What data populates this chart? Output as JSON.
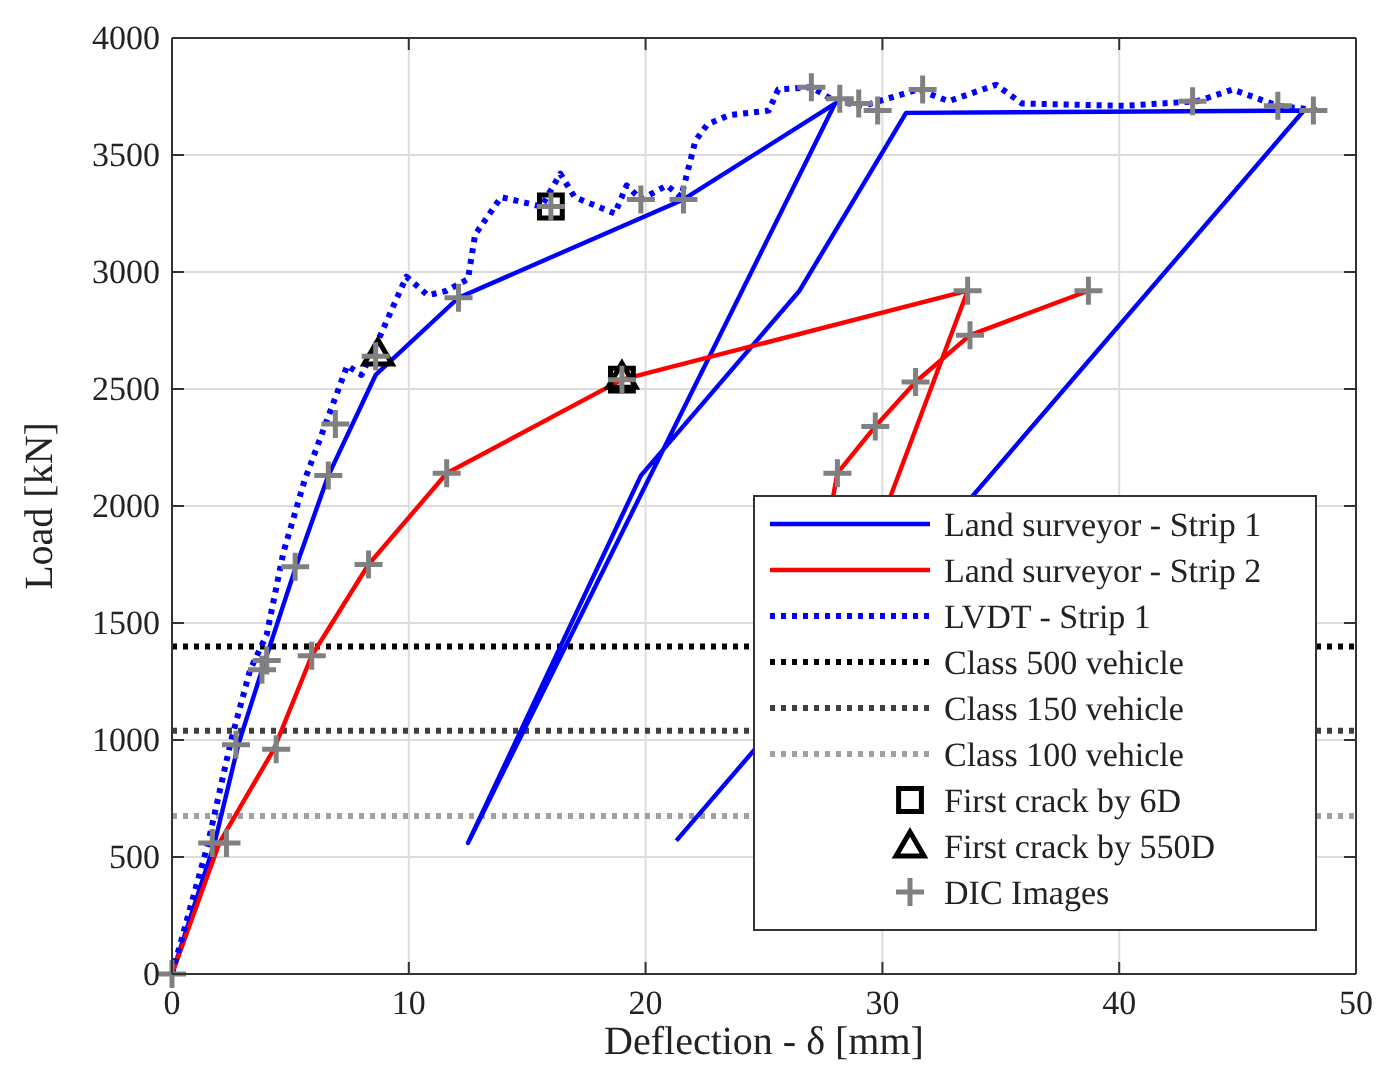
{
  "chart_data": {
    "type": "line",
    "xlabel": "Deflection - δ [mm]",
    "ylabel": "Load [kN]",
    "xlim": [
      0,
      50
    ],
    "xticks": [
      0,
      10,
      20,
      30,
      40,
      50
    ],
    "ylim": [
      0,
      4000
    ],
    "yticks": [
      0,
      500,
      1000,
      1500,
      2000,
      2500,
      3000,
      3500,
      4000
    ],
    "grid": true,
    "legend": "bottom right",
    "series": [
      {
        "name": "Land surveyor - Strip 1",
        "line_style": "solid",
        "color": "#0000ff",
        "x": [
          0,
          1.8,
          2.8,
          3.9,
          5.2,
          6.6,
          8.6,
          12.1,
          21.6,
          28.0,
          12.5,
          19.8,
          26.5,
          31.0,
          47.8,
          21.3
        ],
        "values": [
          0,
          560,
          980,
          1330,
          1730,
          2130,
          2560,
          2890,
          3310,
          3720,
          560,
          2130,
          2920,
          3680,
          3690,
          570
        ]
      },
      {
        "name": "Land surveyor - Strip 2",
        "line_style": "solid",
        "color": "#ff0000",
        "x": [
          0,
          2.0,
          4.3,
          5.9,
          8.3,
          11.6,
          19.0,
          33.6,
          30.3,
          27.9,
          28.1,
          29.7,
          31.4,
          33.7,
          38.7
        ],
        "values": [
          0,
          560,
          960,
          1360,
          1750,
          2140,
          2540,
          2920,
          2030,
          2030,
          2140,
          2340,
          2530,
          2730,
          2920
        ]
      },
      {
        "name": "LVDT - Strip 1",
        "line_style": "dotted",
        "color": "#0000ff",
        "x": [
          0,
          1.5,
          2.5,
          3.3,
          4.0,
          4.7,
          5.6,
          6.3,
          7.4,
          8.0,
          8.8,
          9.9,
          10.8,
          11.6,
          12.5,
          12.8,
          13.9,
          15.6,
          16.4,
          17.0,
          18.7,
          19.2,
          19.8,
          20.9,
          21.5,
          22.1,
          22.6,
          23.5,
          25.2,
          25.6,
          27.0,
          28.0,
          29.2,
          31.5,
          32.8,
          34.8,
          35.9,
          40.2,
          43.3,
          44.8,
          46.7,
          48.5
        ],
        "values": [
          0,
          550,
          1000,
          1300,
          1450,
          1800,
          2110,
          2300,
          2600,
          2560,
          2730,
          2980,
          2900,
          2920,
          2970,
          3160,
          3320,
          3280,
          3420,
          3320,
          3250,
          3370,
          3310,
          3370,
          3320,
          3560,
          3630,
          3670,
          3690,
          3780,
          3790,
          3730,
          3710,
          3780,
          3730,
          3800,
          3720,
          3710,
          3730,
          3780,
          3710,
          3690
        ]
      },
      {
        "name": "First crack by 6D",
        "type": "scatter",
        "marker": "square",
        "color": "#000000",
        "x": [
          16.0,
          19.0
        ],
        "values": [
          3280,
          2540
        ]
      },
      {
        "name": "First crack by 550D",
        "type": "scatter",
        "marker": "triangle",
        "color": "#000000",
        "x": [
          8.7,
          19.0
        ],
        "values": [
          2650,
          2550
        ]
      },
      {
        "name": "DIC Images",
        "type": "scatter",
        "marker": "cross",
        "color": "#808080",
        "x": [
          0,
          1.7,
          2.3,
          2.7,
          4.4,
          3.8,
          4.0,
          5.9,
          5.2,
          8.3,
          6.6,
          6.9,
          8.6,
          11.6,
          12.1,
          16.0,
          19.0,
          19.8,
          21.6,
          27.0,
          28.2,
          29.0,
          29.8,
          31.7,
          33.6,
          38.7,
          33.7,
          31.4,
          29.7,
          28.1,
          43.1,
          46.7,
          48.2
        ],
        "values": [
          0,
          560,
          560,
          980,
          960,
          1300,
          1340,
          1360,
          1740,
          1750,
          2130,
          2350,
          2640,
          2140,
          2890,
          3280,
          2540,
          3310,
          3310,
          3790,
          3740,
          3720,
          3690,
          3780,
          2920,
          2920,
          2730,
          2530,
          2340,
          2140,
          3730,
          3710,
          3690
        ]
      }
    ],
    "ref_lines": [
      {
        "axis": "y",
        "value": 1400,
        "label": "Class 500 vehicle",
        "color": "#000000",
        "line_style": "dotted"
      },
      {
        "axis": "y",
        "value": 1040,
        "label": "Class 150 vehicle",
        "color": "#404040",
        "line_style": "dotted"
      },
      {
        "axis": "y",
        "value": 675,
        "label": "Class 100 vehicle",
        "color": "#a0a0a0",
        "line_style": "dotted"
      }
    ]
  }
}
